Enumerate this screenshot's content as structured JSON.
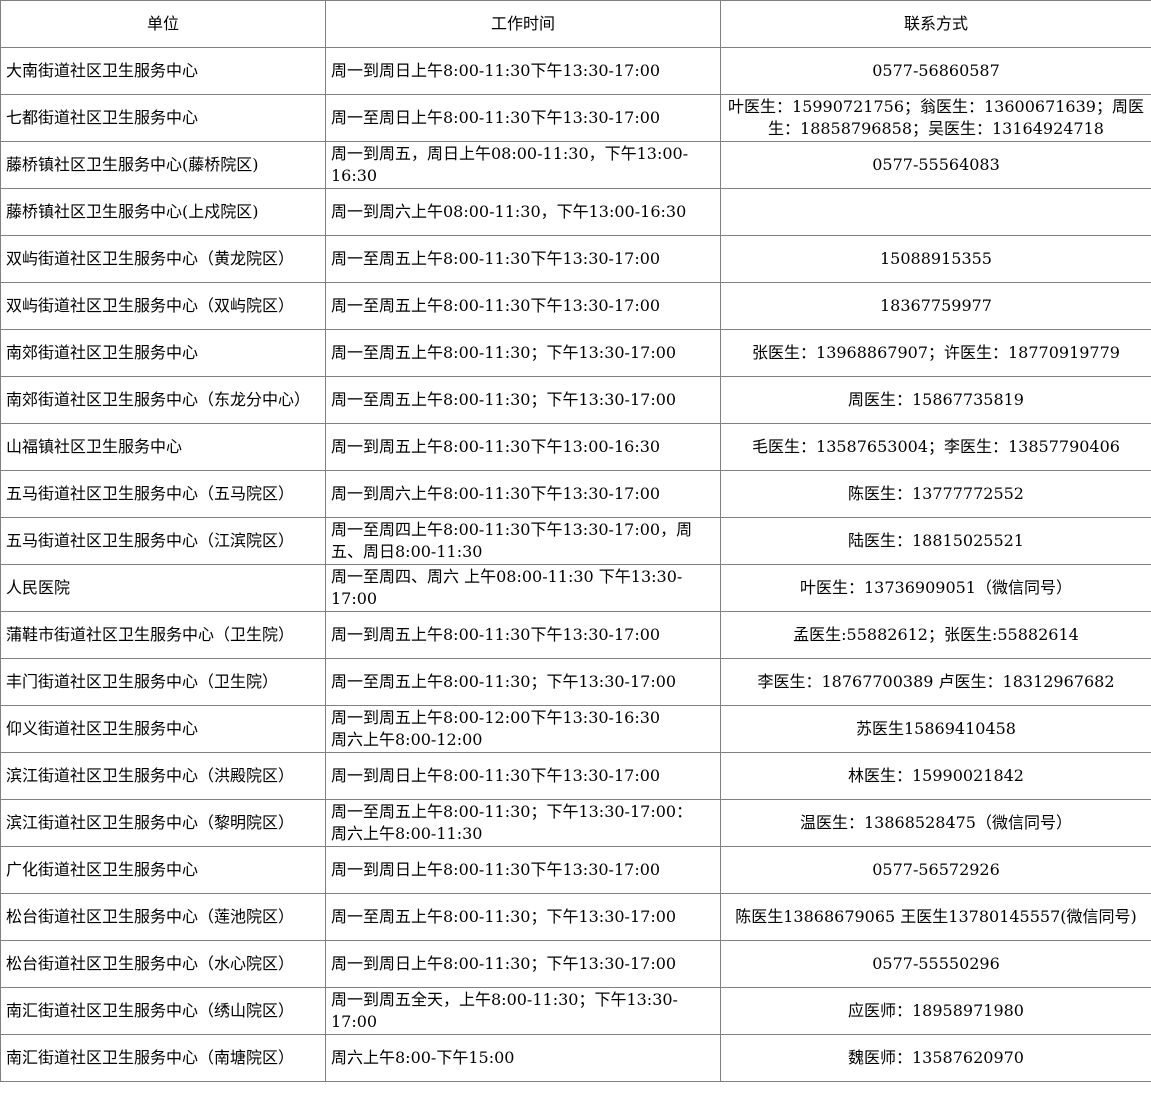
{
  "colors": {
    "border": "#808080",
    "text": "#000000",
    "background": "#ffffff"
  },
  "table": {
    "headers": [
      "单位",
      "工作时间",
      "联系方式"
    ],
    "rows": [
      {
        "unit": "大南街道社区卫生服务中心",
        "hours": "周一到周日上午8:00-11:30下午13:30-17:00",
        "contact": "0577-56860587"
      },
      {
        "unit": "七都街道社区卫生服务中心",
        "hours": "周一至周日上午8:00-11:30下午13:30-17:00",
        "contact": "叶医生：15990721756；翁医生：13600671639；周医生：18858796858；吴医生：13164924718"
      },
      {
        "unit": "藤桥镇社区卫生服务中心(藤桥院区)",
        "hours": "周一到周五，周日上午08:00-11:30，下午13:00-16:30",
        "contact": "0577-55564083"
      },
      {
        "unit": "藤桥镇社区卫生服务中心(上戍院区)",
        "hours": "周一到周六上午08:00-11:30，下午13:00-16:30",
        "contact": ""
      },
      {
        "unit": "双屿街道社区卫生服务中心（黄龙院区）",
        "hours": "周一至周五上午8:00-11:30下午13:30-17:00",
        "contact": "15088915355"
      },
      {
        "unit": "双屿街道社区卫生服务中心（双屿院区）",
        "hours": "周一至周五上午8:00-11:30下午13:30-17:00",
        "contact": "18367759977"
      },
      {
        "unit": "南郊街道社区卫生服务中心",
        "hours": "周一至周五上午8:00-11:30；下午13:30-17:00",
        "contact": "张医生：13968867907；许医生：18770919779"
      },
      {
        "unit": "南郊街道社区卫生服务中心（东龙分中心）",
        "hours": "周一至周五上午8:00-11:30；下午13:30-17:00",
        "contact": "周医生：15867735819"
      },
      {
        "unit": "山福镇社区卫生服务中心",
        "hours": "周一到周五上午8:00-11:30下午13:00-16:30",
        "contact": "毛医生：13587653004；李医生：13857790406"
      },
      {
        "unit": "五马街道社区卫生服务中心（五马院区）",
        "hours": "周一到周六上午8:00-11:30下午13:30-17:00",
        "contact": "陈医生：13777772552"
      },
      {
        "unit": "五马街道社区卫生服务中心（江滨院区）",
        "hours": "周一至周四上午8:00-11:30下午13:30-17:00，周五、周日8:00-11:30",
        "contact": "陆医生：18815025521"
      },
      {
        "unit": "人民医院",
        "hours": "周一至周四、周六 上午08:00-11:30 下午13:30-17:00",
        "contact": "叶医生：13736909051（微信同号）"
      },
      {
        "unit": "蒲鞋市街道社区卫生服务中心（卫生院）",
        "hours": "周一到周五上午8:00-11:30下午13:30-17:00",
        "contact": "孟医生:55882612；张医生:55882614"
      },
      {
        "unit": "丰门街道社区卫生服务中心（卫生院）",
        "hours": "周一至周五上午8:00-11:30；下午13:30-17:00",
        "contact": "李医生：18767700389 卢医生：18312967682"
      },
      {
        "unit": "仰义街道社区卫生服务中心",
        "hours": "周一到周五上午8:00-12:00下午13:30-16:30\n周六上午8:00-12:00",
        "contact": "苏医生15869410458"
      },
      {
        "unit": "滨江街道社区卫生服务中心（洪殿院区）",
        "hours": "周一到周日上午8:00-11:30下午13:30-17:00",
        "contact": "林医生：15990021842"
      },
      {
        "unit": "滨江街道社区卫生服务中心（黎明院区）",
        "hours": "周一至周五上午8:00-11:30；下午13:30-17:00：\n周六上午8:00-11:30",
        "contact": "温医生：13868528475（微信同号）"
      },
      {
        "unit": "广化街道社区卫生服务中心",
        "hours": "周一到周日上午8:00-11:30下午13:30-17:00",
        "contact": "0577-56572926"
      },
      {
        "unit": "松台街道社区卫生服务中心（莲池院区）",
        "hours": "周一至周五上午8:00-11:30；下午13:30-17:00",
        "contact": "陈医生13868679065 王医生13780145557(微信同号)"
      },
      {
        "unit": "松台街道社区卫生服务中心（水心院区）",
        "hours": "周一到周日上午8:00-11:30；下午13:30-17:00",
        "contact": "0577-55550296"
      },
      {
        "unit": "南汇街道社区卫生服务中心（绣山院区）",
        "hours": "周一到周五全天，上午8:00-11:30；下午13:30-17:00",
        "contact": "应医师：18958971980"
      },
      {
        "unit": "南汇街道社区卫生服务中心（南塘院区）",
        "hours": "周六上午8:00-下午15:00",
        "contact": "魏医师：13587620970"
      }
    ]
  }
}
